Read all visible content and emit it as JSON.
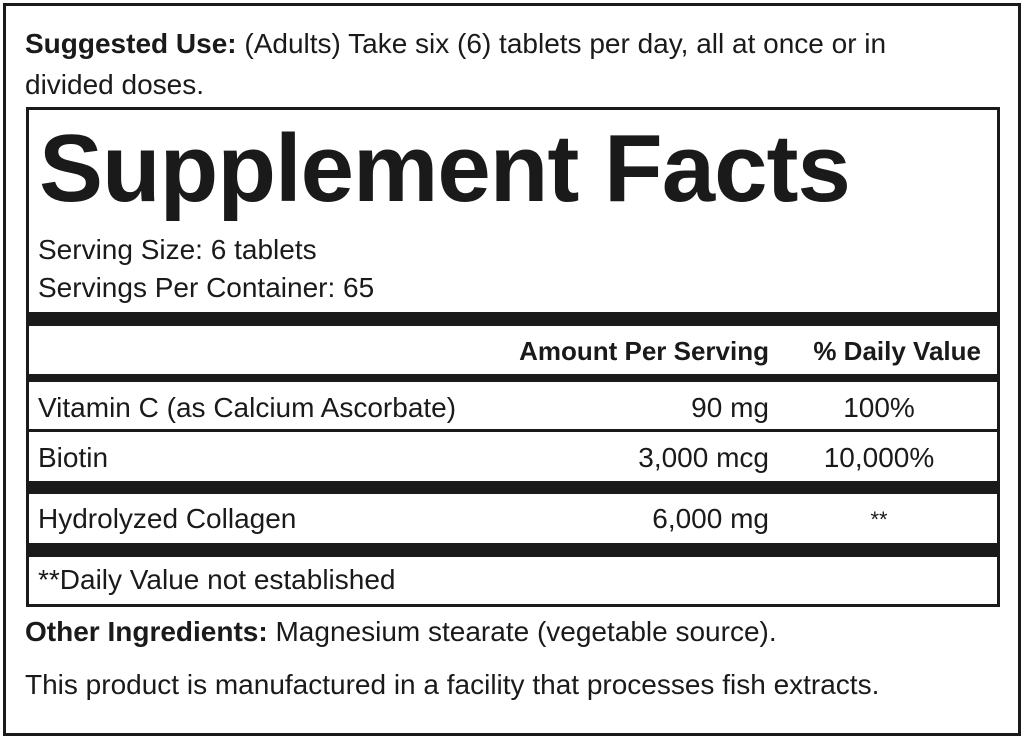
{
  "suggested_use": {
    "label": "Suggested Use:",
    "text_line1": " (Adults) Take six (6) tablets per day, all at once or in",
    "text_line2": "divided doses."
  },
  "panel": {
    "title": "Supplement Facts",
    "serving_size": "Serving Size: 6 tablets",
    "servings_per_container": "Servings Per Container: 65",
    "header": {
      "amount": "Amount Per Serving",
      "dv": "% Daily Value"
    },
    "rows": [
      {
        "name": "Vitamin C (as Calcium Ascorbate)",
        "amount": "90 mg",
        "dv": "100%"
      },
      {
        "name": "Biotin",
        "amount": "3,000 mcg",
        "dv": "10,000%"
      },
      {
        "name": "Hydrolyzed Collagen",
        "amount": "6,000 mg",
        "dv": "**"
      }
    ],
    "footnote": "**Daily Value not established"
  },
  "other_ingredients": {
    "label": "Other Ingredients:",
    "text": " Magnesium stearate (vegetable source)."
  },
  "facility_note": "This product is manufactured in a facility that processes fish extracts."
}
